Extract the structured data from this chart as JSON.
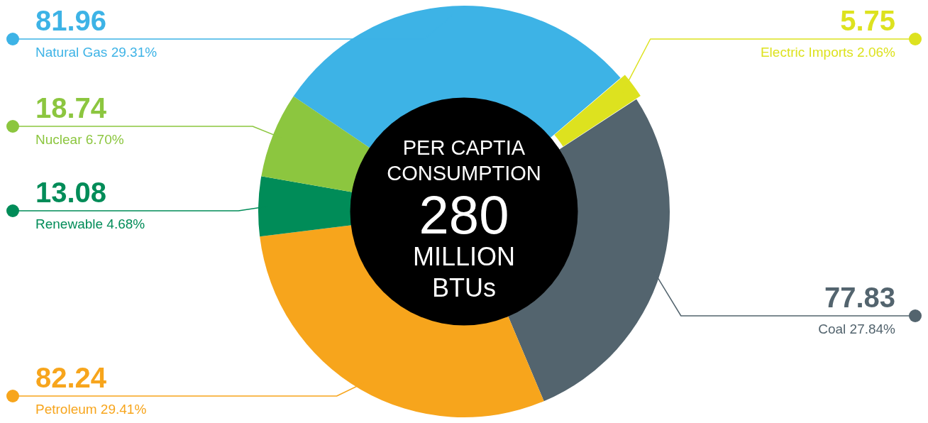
{
  "chart_data": {
    "type": "donut",
    "categories": [
      "Natural Gas 29.31%",
      "Electric Imports 2.06%",
      "Coal 27.84%",
      "Petroleum 29.41%",
      "Renewable 4.68%",
      "Nuclear 6.70%"
    ],
    "values": [
      81.96,
      5.75,
      77.83,
      82.24,
      13.08,
      18.74
    ],
    "colors": [
      "#3db3e6",
      "#dde21f",
      "#53646e",
      "#f7a51c",
      "#008c58",
      "#8cc63f"
    ],
    "data_labels": true,
    "annotations": [
      "PER CAPTIA",
      "CONSUMPTION",
      "280",
      "MILLION",
      "BTUs"
    ]
  }
}
